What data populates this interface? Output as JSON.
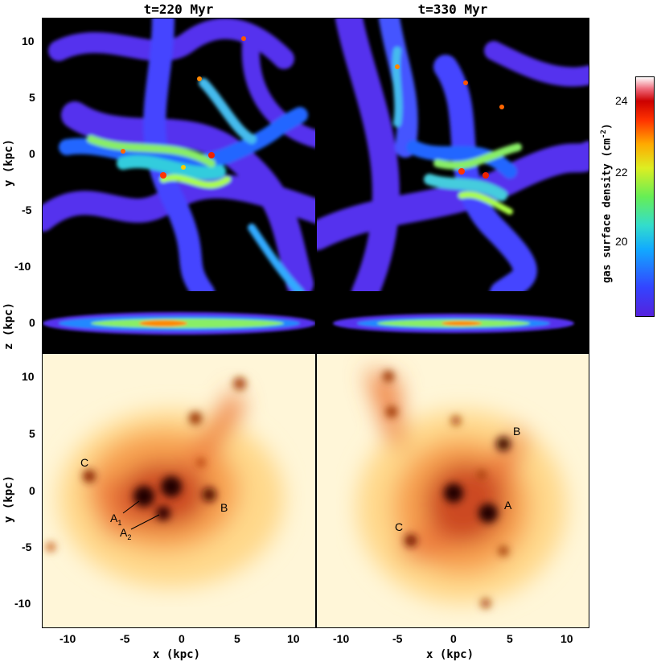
{
  "figure": {
    "left_title": "t=220 Myr",
    "right_title": "t=330 Myr",
    "top_ylabel": "y (kpc)",
    "mid_ylabel": "z (kpc)",
    "bottom_ylabel": "y (kpc)",
    "left_xlabel": "x (kpc)",
    "right_xlabel": "x (kpc)",
    "y_ticks": [
      "10",
      "5",
      "0",
      "-5",
      "-10"
    ],
    "z_ticks": [
      "0"
    ],
    "x_ticks": [
      "-10",
      "-5",
      "0",
      "5",
      "10"
    ],
    "colorbar": {
      "label": "gas surface density (cm",
      "label_exp": "-2",
      "label_end": ")",
      "ticks": [
        "24",
        "22",
        "20"
      ]
    },
    "annotations_left": {
      "C": "C",
      "A1": "A",
      "A1_sub": "1",
      "A2": "A",
      "A2_sub": "2",
      "B": "B"
    },
    "annotations_right": {
      "B": "B",
      "A": "A",
      "C": "C"
    }
  }
}
